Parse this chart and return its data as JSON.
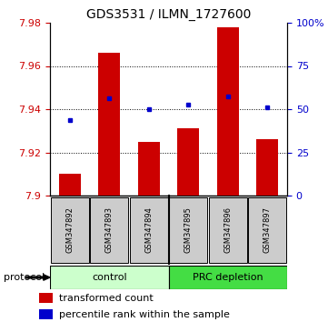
{
  "title": "GDS3531 / ILMN_1727600",
  "samples": [
    "GSM347892",
    "GSM347893",
    "GSM347894",
    "GSM347895",
    "GSM347896",
    "GSM347897"
  ],
  "bar_values": [
    7.91,
    7.966,
    7.925,
    7.931,
    7.978,
    7.926
  ],
  "bar_baseline": 7.9,
  "blue_dot_values": [
    7.935,
    7.945,
    7.94,
    7.942,
    7.946,
    7.941
  ],
  "ylim": [
    7.9,
    7.98
  ],
  "y2lim": [
    0,
    100
  ],
  "yticks_left": [
    7.9,
    7.92,
    7.94,
    7.96,
    7.98
  ],
  "ytick_labels_left": [
    "7.9",
    "7.92",
    "7.94",
    "7.96",
    "7.98"
  ],
  "yticks_right": [
    0,
    25,
    50,
    75,
    100
  ],
  "ytick_labels_right": [
    "0",
    "25",
    "50",
    "75",
    "100%"
  ],
  "grid_yticks": [
    7.92,
    7.94,
    7.96
  ],
  "bar_color": "#cc0000",
  "dot_color": "#0000cc",
  "n_control": 3,
  "n_prc": 3,
  "control_label": "control",
  "prc_label": "PRC depletion",
  "protocol_label": "protocol",
  "legend_bar_label": "transformed count",
  "legend_dot_label": "percentile rank within the sample",
  "control_color": "#ccffcc",
  "prc_color": "#44dd44",
  "sample_box_color": "#cccccc",
  "bar_width": 0.55,
  "title_fontsize": 10,
  "tick_fontsize": 8,
  "sample_fontsize": 6,
  "label_fontsize": 8,
  "legend_fontsize": 8
}
